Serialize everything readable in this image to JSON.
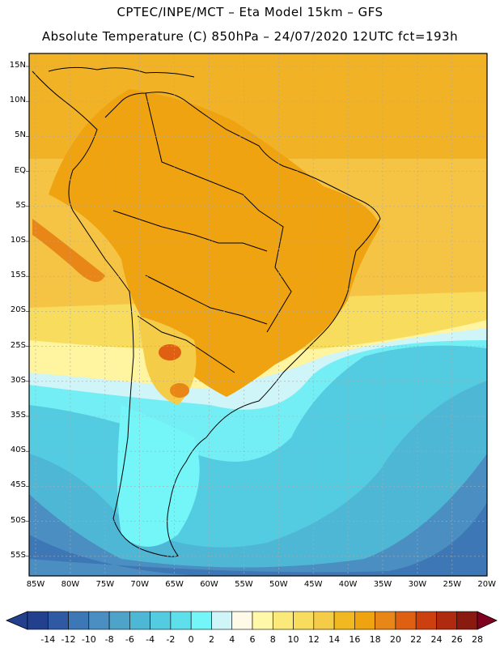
{
  "header": {
    "line1": "CPTEC/INPE/MCT –  Eta Model 15km – GFS",
    "line2": "Absolute Temperature (C) 850hPa – 24/07/2020 12UTC fct=193h"
  },
  "map": {
    "lat_labels": [
      "15N",
      "10N",
      "5N",
      "EQ",
      "5S",
      "10S",
      "15S",
      "20S",
      "25S",
      "30S",
      "35S",
      "40S",
      "45S",
      "50S",
      "55S"
    ],
    "lon_labels": [
      "85W",
      "80W",
      "75W",
      "70W",
      "65W",
      "60W",
      "55W",
      "50W",
      "45W",
      "40W",
      "35W",
      "30W",
      "25W",
      "20W"
    ]
  },
  "colorbar": {
    "labels": [
      "-14",
      "-12",
      "-10",
      "-8",
      "-6",
      "-4",
      "-2",
      "0",
      "2",
      "4",
      "6",
      "8",
      "10",
      "12",
      "14",
      "16",
      "18",
      "20",
      "22",
      "24",
      "26",
      "28"
    ],
    "colors": [
      "#23408f",
      "#2f5aa3",
      "#3d77b5",
      "#4b8fc2",
      "#4ea3c9",
      "#4fb7d6",
      "#53cbe0",
      "#5ee0ec",
      "#74f5f8",
      "#cff5f8",
      "#fff9e8",
      "#fff8a8",
      "#fbea7a",
      "#f8dc5e",
      "#f5cc48",
      "#f2b822",
      "#efa310",
      "#e88718",
      "#df6012",
      "#cc4010",
      "#b02a10",
      "#8a1a10",
      "#6a1010",
      "#800020"
    ]
  }
}
